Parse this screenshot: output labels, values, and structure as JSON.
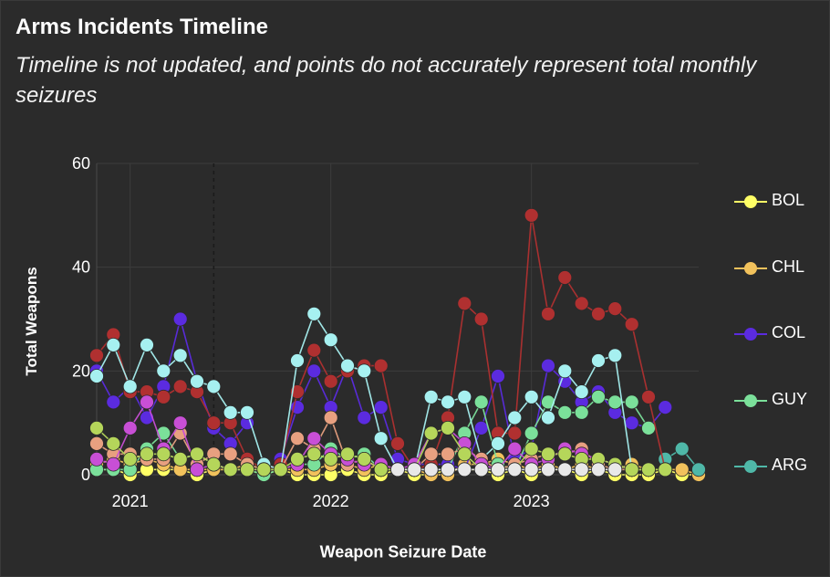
{
  "header": {
    "title": "Arms Incidents Timeline",
    "subtitle": "Timeline is not updated, and points do not accurately represent total monthly seizures"
  },
  "colors": {
    "background": "#2b2b2b",
    "grid": "#3c3c3c",
    "text": "#ffffff"
  },
  "chart_data": {
    "type": "line",
    "xlabel": "Weapon Seizure Date",
    "ylabel": "Total Weapons",
    "xlim": [
      "2020-11",
      "2023-11"
    ],
    "ylim": [
      0,
      60
    ],
    "yticks": [
      0,
      20,
      40,
      60
    ],
    "xticks": [
      {
        "label": "2021",
        "date": "2021-01"
      },
      {
        "label": "2022",
        "date": "2022-01"
      },
      {
        "label": "2023",
        "date": "2023-01"
      }
    ],
    "reference_line": {
      "date": "2021-06",
      "style": "dashed"
    },
    "grid": true,
    "legend_position": "right",
    "x": [
      "2020-11",
      "2020-12",
      "2021-01",
      "2021-02",
      "2021-03",
      "2021-04",
      "2021-05",
      "2021-06",
      "2021-07",
      "2021-08",
      "2021-09",
      "2021-10",
      "2021-11",
      "2021-12",
      "2022-01",
      "2022-02",
      "2022-03",
      "2022-04",
      "2022-05",
      "2022-06",
      "2022-07",
      "2022-08",
      "2022-09",
      "2022-10",
      "2022-11",
      "2022-12",
      "2023-01",
      "2023-02",
      "2023-03",
      "2023-04",
      "2023-05",
      "2023-06",
      "2023-07",
      "2023-08",
      "2023-09",
      "2023-10",
      "2023-11"
    ],
    "series": [
      {
        "name": "BOL",
        "color": "#ffff66",
        "legend": true,
        "values": [
          1,
          1,
          0,
          1,
          1,
          1,
          0,
          1,
          1,
          1,
          0,
          1,
          0,
          0,
          0,
          1,
          0,
          0,
          1,
          0,
          0,
          1,
          1,
          1,
          0,
          1,
          0,
          1,
          1,
          0,
          1,
          0,
          0,
          0,
          1,
          0,
          0
        ]
      },
      {
        "name": "CHL",
        "color": "#f2c25c",
        "legend": true,
        "values": [
          2,
          3,
          2,
          3,
          2,
          1,
          1,
          1,
          1,
          2,
          1,
          1,
          1,
          1,
          2,
          2,
          1,
          2,
          1,
          1,
          0,
          0,
          2,
          2,
          3,
          2,
          1,
          2,
          1,
          2,
          1,
          1,
          2,
          1,
          1,
          1,
          0
        ]
      },
      {
        "name": "COL",
        "color": "#5b2be0",
        "legend": true,
        "values": [
          20,
          14,
          17,
          11,
          17,
          30,
          18,
          9,
          6,
          10,
          null,
          3,
          13,
          20,
          13,
          21,
          11,
          13,
          3,
          2,
          2,
          2,
          1,
          9,
          19,
          3,
          5,
          21,
          18,
          14,
          16,
          12,
          10,
          9,
          13,
          null,
          null
        ]
      },
      {
        "name": "GUY",
        "color": "#7be09a",
        "legend": true,
        "values": [
          1,
          1,
          1,
          5,
          8,
          3,
          4,
          2,
          1,
          1,
          0,
          1,
          2,
          2,
          5,
          3,
          4,
          1,
          1,
          1,
          1,
          1,
          8,
          14,
          2,
          1,
          8,
          14,
          12,
          12,
          15,
          14,
          14,
          9,
          null,
          null,
          null
        ]
      },
      {
        "name": "ARG",
        "color": "#4fb8a8",
        "legend": true,
        "values": [
          null,
          null,
          null,
          null,
          null,
          null,
          null,
          null,
          null,
          null,
          null,
          null,
          null,
          null,
          null,
          null,
          null,
          null,
          null,
          null,
          null,
          null,
          null,
          null,
          null,
          null,
          null,
          null,
          null,
          null,
          null,
          null,
          null,
          null,
          3,
          5,
          1
        ]
      },
      {
        "name": "",
        "color": "#b03030",
        "legend": false,
        "values": [
          23,
          27,
          16,
          16,
          15,
          17,
          16,
          10,
          10,
          3,
          1,
          2,
          16,
          24,
          18,
          20,
          21,
          21,
          6,
          1,
          2,
          11,
          33,
          30,
          8,
          8,
          50,
          31,
          38,
          33,
          31,
          32,
          29,
          15,
          1,
          null,
          null
        ]
      },
      {
        "name": "",
        "color": "#a6f0f0",
        "legend": false,
        "values": [
          19,
          25,
          17,
          25,
          20,
          23,
          18,
          17,
          12,
          12,
          2,
          1,
          22,
          31,
          26,
          21,
          20,
          7,
          1,
          1,
          15,
          14,
          15,
          3,
          6,
          11,
          15,
          11,
          20,
          16,
          22,
          23,
          1,
          1,
          null,
          null,
          null
        ]
      },
      {
        "name": "",
        "color": "#e8a080",
        "legend": false,
        "values": [
          6,
          4,
          4,
          3,
          3,
          8,
          2,
          4,
          4,
          2,
          1,
          1,
          7,
          5,
          11,
          2,
          3,
          1,
          1,
          1,
          4,
          4,
          5,
          3,
          1,
          2,
          3,
          4,
          4,
          5,
          2,
          1,
          1,
          1,
          null,
          null,
          null
        ]
      },
      {
        "name": "",
        "color": "#c84fd6",
        "legend": false,
        "values": [
          3,
          2,
          9,
          14,
          5,
          10,
          1,
          2,
          1,
          1,
          1,
          1,
          2,
          7,
          4,
          3,
          2,
          2,
          1,
          2,
          8,
          9,
          6,
          2,
          1,
          5,
          2,
          3,
          5,
          4,
          3,
          2,
          1,
          null,
          null,
          null,
          null
        ]
      },
      {
        "name": "",
        "color": "#b5d65a",
        "legend": false,
        "values": [
          9,
          6,
          3,
          4,
          4,
          3,
          4,
          2,
          1,
          1,
          1,
          1,
          3,
          4,
          3,
          4,
          3,
          1,
          1,
          1,
          8,
          9,
          4,
          1,
          1,
          1,
          5,
          4,
          4,
          3,
          3,
          2,
          1,
          1,
          1,
          null,
          null
        ]
      },
      {
        "name": "",
        "color": "#e8e8e8",
        "legend": false,
        "values": [
          null,
          null,
          null,
          null,
          null,
          null,
          null,
          null,
          null,
          null,
          null,
          null,
          null,
          null,
          null,
          null,
          null,
          null,
          1,
          1,
          1,
          1,
          1,
          1,
          1,
          1,
          1,
          1,
          1,
          1,
          1,
          1,
          null,
          null,
          null,
          null,
          null
        ]
      }
    ]
  }
}
